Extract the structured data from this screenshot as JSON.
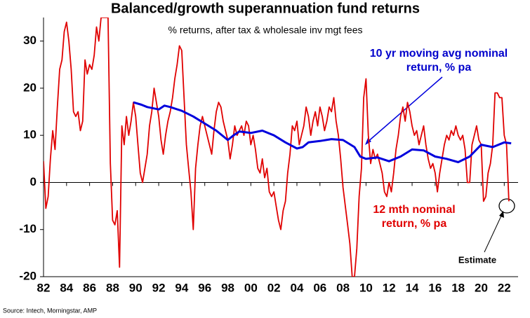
{
  "chart_data": {
    "type": "line",
    "title": "Balanced/growth superannuation fund returns",
    "subtitle": "% returns, after tax & wholesale inv mgt fees",
    "source": "Source: Intech, Morningstar, AMP",
    "annotations": [
      {
        "lines": [
          "10 yr moving avg nominal",
          "return, % pa"
        ],
        "color": "#0000cc"
      },
      {
        "lines": [
          "12 mth nominal",
          "return, % pa"
        ],
        "color": "#e00000"
      },
      {
        "lines": [
          "Estimate"
        ],
        "color": "#000000"
      }
    ],
    "xlim": [
      1982,
      2023.2
    ],
    "ylim": [
      -20,
      35
    ],
    "xticks": [
      {
        "value": 1982,
        "label": "82"
      },
      {
        "value": 1984,
        "label": "84"
      },
      {
        "value": 1986,
        "label": "86"
      },
      {
        "value": 1988,
        "label": "88"
      },
      {
        "value": 1990,
        "label": "90"
      },
      {
        "value": 1992,
        "label": "92"
      },
      {
        "value": 1994,
        "label": "94"
      },
      {
        "value": 1996,
        "label": "96"
      },
      {
        "value": 1998,
        "label": "98"
      },
      {
        "value": 2000,
        "label": "00"
      },
      {
        "value": 2002,
        "label": "02"
      },
      {
        "value": 2004,
        "label": "04"
      },
      {
        "value": 2006,
        "label": "06"
      },
      {
        "value": 2008,
        "label": "08"
      },
      {
        "value": 2010,
        "label": "10"
      },
      {
        "value": 2012,
        "label": "12"
      },
      {
        "value": 2014,
        "label": "14"
      },
      {
        "value": 2016,
        "label": "16"
      },
      {
        "value": 2018,
        "label": "18"
      },
      {
        "value": 2020,
        "label": "20"
      },
      {
        "value": 2022,
        "label": "22"
      }
    ],
    "yticks": [
      -20,
      -10,
      0,
      10,
      20,
      30
    ],
    "series": [
      {
        "color": "#e00000",
        "x": [
          1982.0,
          1982.2,
          1982.4,
          1982.6,
          1982.8,
          1983.0,
          1983.2,
          1983.4,
          1983.6,
          1983.8,
          1984.0,
          1984.2,
          1984.4,
          1984.6,
          1984.8,
          1985.0,
          1985.2,
          1985.4,
          1985.6,
          1985.8,
          1986.0,
          1986.2,
          1986.4,
          1986.6,
          1986.8,
          1987.0,
          1987.2,
          1987.4,
          1987.6,
          1987.8,
          1988.0,
          1988.2,
          1988.4,
          1988.6,
          1988.8,
          1989.0,
          1989.2,
          1989.4,
          1989.6,
          1989.8,
          1990.0,
          1990.2,
          1990.4,
          1990.6,
          1990.8,
          1991.0,
          1991.2,
          1991.4,
          1991.6,
          1991.8,
          1992.0,
          1992.2,
          1992.4,
          1992.6,
          1992.8,
          1993.0,
          1993.2,
          1993.4,
          1993.6,
          1993.8,
          1994.0,
          1994.2,
          1994.4,
          1994.6,
          1994.8,
          1995.0,
          1995.2,
          1995.4,
          1995.6,
          1995.8,
          1996.0,
          1996.2,
          1996.4,
          1996.6,
          1996.8,
          1997.0,
          1997.2,
          1997.4,
          1997.6,
          1997.8,
          1998.0,
          1998.2,
          1998.4,
          1998.6,
          1998.8,
          1999.0,
          1999.2,
          1999.4,
          1999.6,
          1999.8,
          2000.0,
          2000.2,
          2000.4,
          2000.6,
          2000.8,
          2001.0,
          2001.2,
          2001.4,
          2001.6,
          2001.8,
          2002.0,
          2002.2,
          2002.4,
          2002.6,
          2002.8,
          2003.0,
          2003.2,
          2003.4,
          2003.6,
          2003.8,
          2004.0,
          2004.2,
          2004.4,
          2004.6,
          2004.8,
          2005.0,
          2005.2,
          2005.4,
          2005.6,
          2005.8,
          2006.0,
          2006.2,
          2006.4,
          2006.6,
          2006.8,
          2007.0,
          2007.2,
          2007.4,
          2007.6,
          2007.8,
          2008.0,
          2008.2,
          2008.4,
          2008.6,
          2008.8,
          2009.0,
          2009.2,
          2009.4,
          2009.6,
          2009.8,
          2010.0,
          2010.2,
          2010.4,
          2010.6,
          2010.8,
          2011.0,
          2011.2,
          2011.4,
          2011.6,
          2011.8,
          2012.0,
          2012.2,
          2012.4,
          2012.6,
          2012.8,
          2013.0,
          2013.2,
          2013.4,
          2013.6,
          2013.8,
          2014.0,
          2014.2,
          2014.4,
          2014.6,
          2014.8,
          2015.0,
          2015.2,
          2015.4,
          2015.6,
          2015.8,
          2016.0,
          2016.2,
          2016.4,
          2016.6,
          2016.8,
          2017.0,
          2017.2,
          2017.4,
          2017.6,
          2017.8,
          2018.0,
          2018.2,
          2018.4,
          2018.6,
          2018.8,
          2019.0,
          2019.2,
          2019.4,
          2019.6,
          2019.8,
          2020.0,
          2020.2,
          2020.4,
          2020.6,
          2020.8,
          2021.0,
          2021.2,
          2021.4,
          2021.6,
          2021.8,
          2022.0,
          2022.2,
          2022.4
        ],
        "values": [
          4.5,
          -5.5,
          -3,
          5,
          11,
          7,
          16,
          24,
          26,
          32,
          34,
          30,
          24,
          15,
          14,
          15,
          11,
          13,
          26,
          23,
          25,
          24,
          27,
          33,
          30,
          35,
          35,
          35,
          35,
          4,
          -8,
          -9,
          -6,
          -18,
          12,
          8,
          14,
          10,
          13,
          17,
          14,
          8,
          2,
          0,
          3,
          6,
          12,
          15,
          20,
          17,
          14,
          9,
          6,
          10,
          13,
          15,
          18,
          22,
          25,
          29,
          28,
          18,
          8,
          3,
          -2,
          -10,
          3,
          8,
          12,
          14,
          12,
          10,
          8,
          6,
          11,
          15,
          17,
          16,
          13,
          11,
          9,
          5,
          8,
          12,
          10,
          11,
          12,
          10,
          13,
          12,
          8,
          10,
          7,
          3,
          2,
          5,
          1,
          3,
          -2,
          -3,
          -2,
          -5,
          -8,
          -10,
          -6,
          -4,
          2,
          6,
          12,
          11,
          13,
          8,
          10,
          12,
          16,
          14,
          10,
          13,
          15,
          12,
          16,
          14,
          11,
          13,
          16,
          15,
          18,
          13,
          10,
          5,
          -1,
          -5,
          -9,
          -13,
          -20,
          -20,
          -14,
          -3,
          3,
          18,
          22,
          10,
          4,
          7,
          5,
          6,
          4,
          2,
          -2,
          -3,
          0,
          -2,
          2,
          7,
          10,
          14,
          16,
          13,
          17,
          15,
          12,
          10,
          11,
          8,
          10,
          12,
          8,
          5,
          3,
          4,
          2,
          -2,
          2,
          5,
          8,
          10,
          9,
          11,
          10,
          12,
          10,
          9,
          10,
          7,
          0,
          0,
          8,
          10,
          12,
          9,
          8,
          -4,
          -3,
          2,
          4,
          8,
          19,
          19,
          18,
          18,
          10,
          8,
          -4
        ]
      },
      {
        "color": "#0000dd",
        "x": [
          1989.8,
          1990.5,
          1991,
          1992,
          1992.5,
          1993,
          1994,
          1995,
          1996,
          1997,
          1998,
          1998.5,
          1999,
          2000,
          2001,
          2002,
          2003,
          2004,
          2004.5,
          2005,
          2006,
          2007,
          2008,
          2009,
          2009.5,
          2010,
          2011,
          2012,
          2013,
          2014,
          2015,
          2016,
          2017,
          2018,
          2019,
          2020,
          2021,
          2022,
          2022.6
        ],
        "values": [
          17,
          16.5,
          16,
          15.5,
          16.3,
          16,
          15.2,
          14,
          12.5,
          11,
          9,
          10,
          10.8,
          10.5,
          11,
          10,
          8.5,
          7.2,
          7.5,
          8.5,
          8.8,
          9.2,
          9,
          7.5,
          5.5,
          5,
          5.3,
          4.5,
          5.5,
          7,
          6.8,
          5.5,
          5,
          4.3,
          5.5,
          8,
          7.5,
          8.5,
          8.3
        ]
      }
    ]
  }
}
